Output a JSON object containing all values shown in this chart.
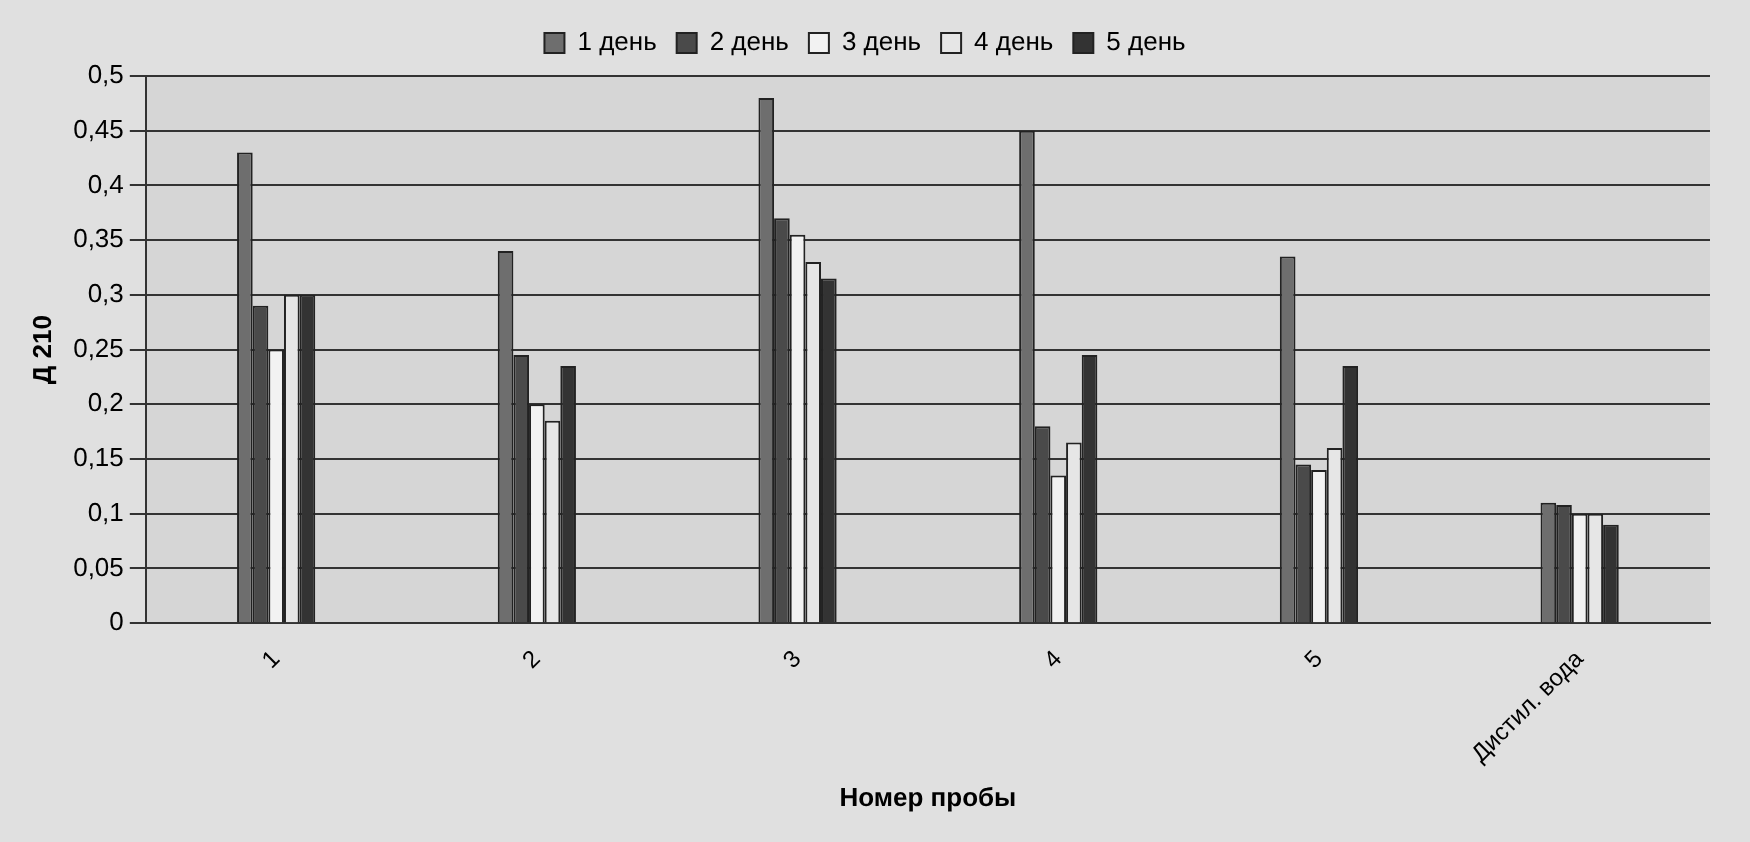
{
  "chart_data": {
    "type": "bar",
    "xlabel": "Номер пробы",
    "ylabel": "Д 210",
    "categories": [
      "1",
      "2",
      "3",
      "4",
      "5",
      "Дистил. вода"
    ],
    "series": [
      {
        "name": "1 день",
        "color": "#6e6e6e",
        "values": [
          0.43,
          0.34,
          0.48,
          0.45,
          0.335,
          0.11
        ]
      },
      {
        "name": "2 день",
        "color": "#4a4a4a",
        "values": [
          0.29,
          0.245,
          0.37,
          0.18,
          0.145,
          0.108
        ]
      },
      {
        "name": "3 день",
        "color": "#f2f2f2",
        "values": [
          0.25,
          0.2,
          0.355,
          0.135,
          0.14,
          0.1
        ]
      },
      {
        "name": "4 день",
        "color": "#e6e6e6",
        "values": [
          0.3,
          0.185,
          0.33,
          0.165,
          0.16,
          0.1
        ]
      },
      {
        "name": "5 день",
        "color": "#333333",
        "values": [
          0.3,
          0.235,
          0.315,
          0.245,
          0.235,
          0.09
        ]
      }
    ],
    "ylim": [
      0,
      0.5
    ],
    "yticks": [
      0,
      {
        "value": 0.05,
        "label": "0,05"
      },
      {
        "value": 0.1,
        "label": "0,1"
      },
      {
        "value": 0.15,
        "label": "0,15"
      },
      {
        "value": 0.2,
        "label": "0,2"
      },
      {
        "value": 0.25,
        "label": "0,25"
      },
      {
        "value": 0.3,
        "label": "0,3"
      },
      {
        "value": 0.35,
        "label": "0,35"
      },
      {
        "value": 0.4,
        "label": "0,4"
      },
      {
        "value": 0.45,
        "label": "0,45"
      },
      {
        "value": 0.5,
        "label": "0,5"
      }
    ],
    "grid": "y",
    "legend": "top"
  }
}
